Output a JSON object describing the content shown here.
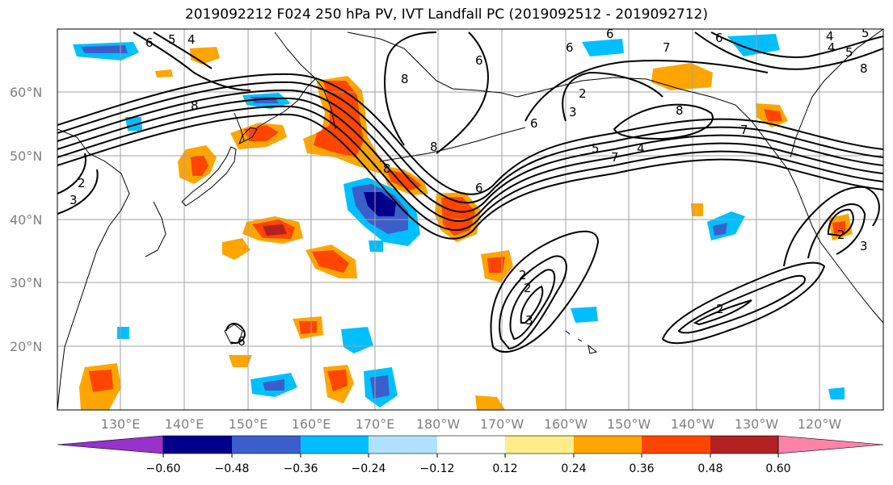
{
  "title": "2019092212 F024 250 hPa PV, IVT Landfall PC (2019092512 - 2019092712)",
  "latitude_labels": [
    "60°N",
    "50°N",
    "40°N",
    "30°N",
    "20°N"
  ],
  "longitude_labels": [
    "130°E",
    "140°E",
    "150°E",
    "160°E",
    "170°E",
    "180°W",
    "170°W",
    "160°W",
    "150°W",
    "140°W",
    "130°W",
    "120°W"
  ],
  "colorbar": {
    "tick_labels": [
      "−0.60",
      "−0.48",
      "−0.36",
      "−0.24",
      "−0.12",
      "0.12",
      "0.24",
      "0.36",
      "0.48",
      "0.60"
    ],
    "colors": [
      "#9932cc",
      "#00008b",
      "#3a5fcd",
      "#00bfff",
      "#b0e2ff",
      "#ffffff",
      "#ffec8b",
      "#ffa500",
      "#ff4500",
      "#b22222",
      "#ff82ab"
    ]
  },
  "contour_labels": [
    "6",
    "5",
    "4",
    "8",
    "6",
    "7",
    "6",
    "4",
    "5",
    "8",
    "2",
    "3",
    "6",
    "8",
    "8",
    "6",
    "2",
    "3",
    "4",
    "5",
    "7",
    "8",
    "6",
    "8",
    "2",
    "3",
    "2",
    "2",
    "2",
    "3",
    "5",
    "7",
    "4",
    "6",
    "6"
  ],
  "features": {
    "land": "coastlines",
    "field": "250 hPa PV contours",
    "shading": "IVT Landfall PC"
  }
}
